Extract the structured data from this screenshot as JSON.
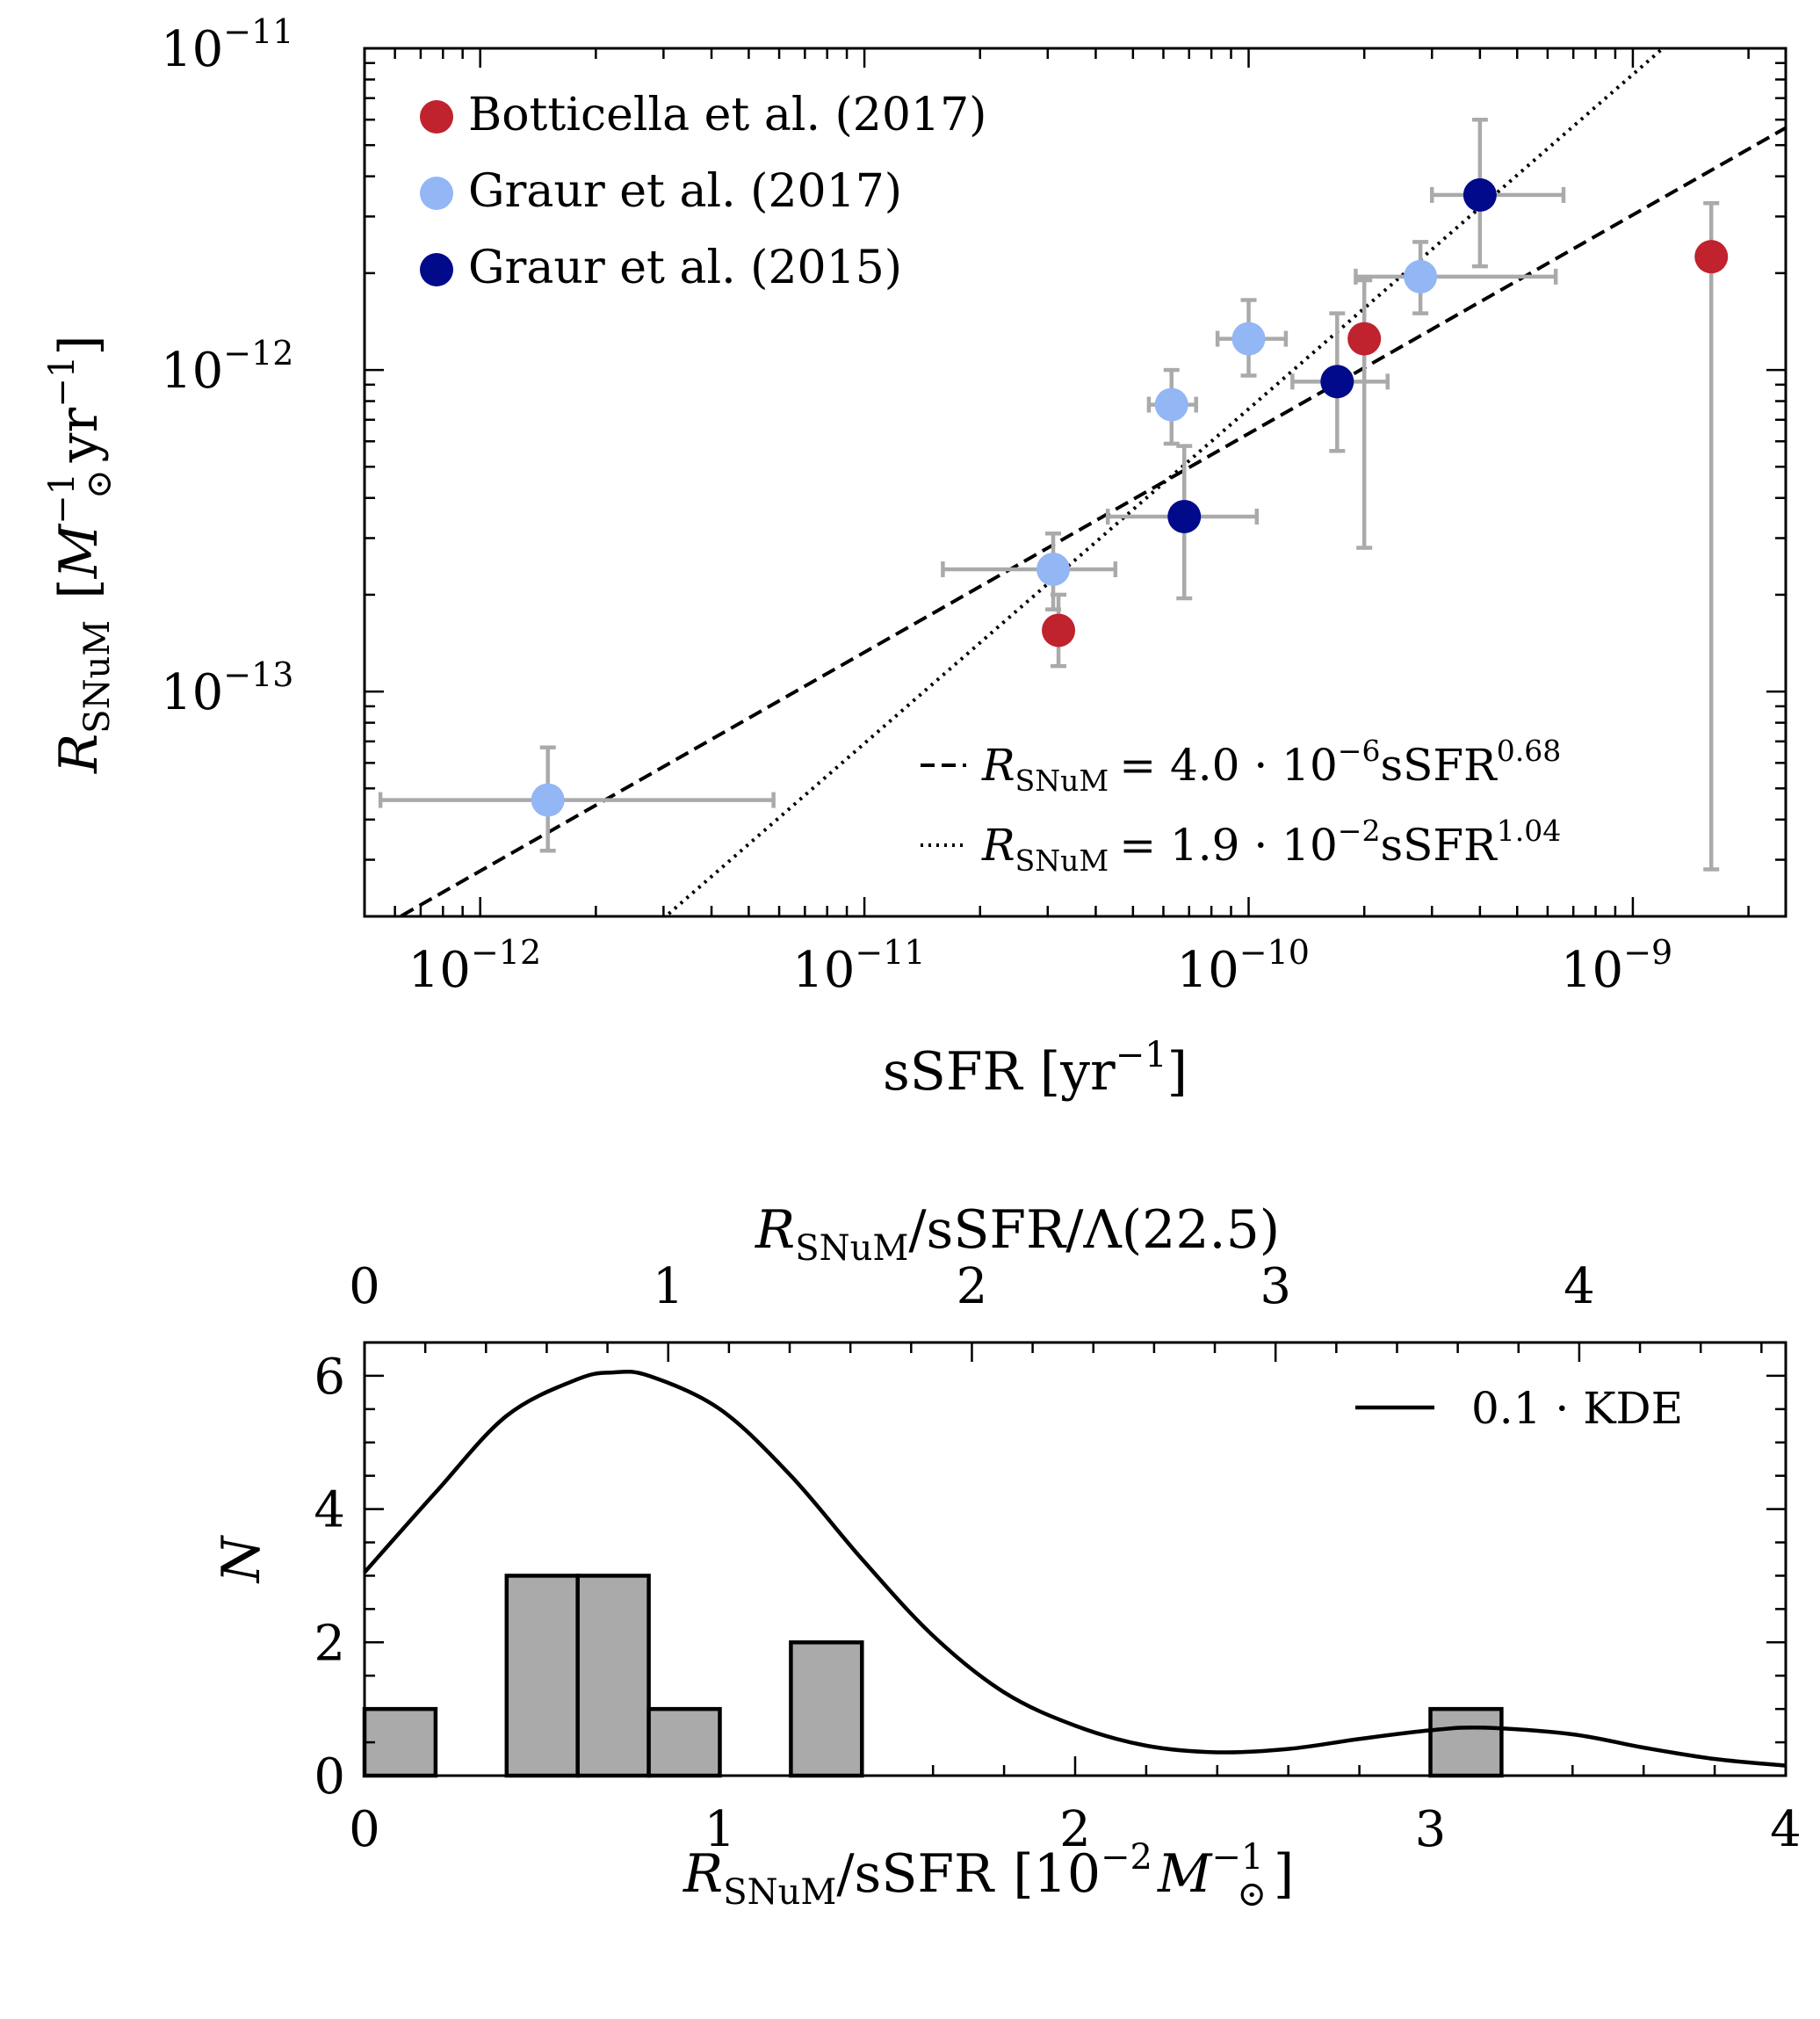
{
  "chart_data": [
    {
      "type": "scatter",
      "xscale": "log",
      "yscale": "log",
      "xlim": [
        5e-13,
        2.5e-09
      ],
      "ylim": [
        2e-14,
        1e-11
      ],
      "xlabel": {
        "main": "sSFR",
        "unit": "yr",
        "unit_exp": "−1"
      },
      "ylabel": {
        "main": "R",
        "sub": "SNuM",
        "unit_pre": "M",
        "unit_pre_exp": "−1",
        "unit_pre_sub": "⊙",
        "unit": "yr",
        "unit_exp": "−1"
      },
      "x_ticks": [
        {
          "value": 1e-12,
          "base": "10",
          "exp": "−12"
        },
        {
          "value": 1e-11,
          "base": "10",
          "exp": "−11"
        },
        {
          "value": 1e-10,
          "base": "10",
          "exp": "−10"
        },
        {
          "value": 1e-09,
          "base": "10",
          "exp": "−9"
        }
      ],
      "y_ticks": [
        {
          "value": 1e-13,
          "base": "10",
          "exp": "−13"
        },
        {
          "value": 1e-12,
          "base": "10",
          "exp": "−12"
        },
        {
          "value": 1e-11,
          "base": "10",
          "exp": "−11"
        }
      ],
      "legend_position": "top-left",
      "series": [
        {
          "name": "Botticella et al. (2017)",
          "color": "#c0222e",
          "points": [
            {
              "x": 3.2e-11,
              "y": 1.55e-13,
              "xerr": null,
              "yerr": [
                1.2e-13,
                2e-13
              ]
            },
            {
              "x": 2e-10,
              "y": 1.25e-12,
              "xerr": null,
              "yerr": [
                2.8e-13,
                1.9e-12
              ]
            },
            {
              "x": 1.6e-09,
              "y": 2.25e-12,
              "xerr": null,
              "yerr": [
                2.8e-14,
                3.3e-12
              ]
            }
          ]
        },
        {
          "name": "Graur et al. (2017)",
          "color": "#93b6f4",
          "points": [
            {
              "x": 1.5e-12,
              "y": 4.6e-14,
              "xerr": [
                5.5e-13,
                5.8e-12
              ],
              "yerr": [
                3.2e-14,
                6.7e-14
              ]
            },
            {
              "x": 3.1e-11,
              "y": 2.4e-13,
              "xerr": [
                1.6e-11,
                4.5e-11
              ],
              "yerr": [
                1.8e-13,
                3.1e-13
              ]
            },
            {
              "x": 6.3e-11,
              "y": 7.8e-13,
              "xerr": [
                5.5e-11,
                7.3e-11
              ],
              "yerr": [
                5.9e-13,
                1e-12
              ]
            },
            {
              "x": 1e-10,
              "y": 1.25e-12,
              "xerr": [
                8.3e-11,
                1.25e-10
              ],
              "yerr": [
                9.6e-13,
                1.65e-12
              ]
            },
            {
              "x": 2.8e-10,
              "y": 1.95e-12,
              "xerr": [
                1.9e-10,
                6.3e-10
              ],
              "yerr": [
                1.5e-12,
                2.5e-12
              ]
            }
          ]
        },
        {
          "name": "Graur et al. (2015)",
          "color": "#000a8a",
          "points": [
            {
              "x": 6.8e-11,
              "y": 3.5e-13,
              "xerr": [
                4.3e-11,
                1.05e-10
              ],
              "yerr": [
                1.95e-13,
                5.8e-13
              ]
            },
            {
              "x": 1.7e-10,
              "y": 9.2e-13,
              "xerr": [
                1.3e-10,
                2.3e-10
              ],
              "yerr": [
                5.6e-13,
                1.5e-12
              ]
            },
            {
              "x": 4e-10,
              "y": 3.5e-12,
              "xerr": [
                3e-10,
                6.6e-10
              ],
              "yerr": [
                2.1e-12,
                6e-12
              ]
            }
          ]
        }
      ],
      "fits": [
        {
          "style": "dashed",
          "coef": 4e-06,
          "exponent": 0.68,
          "label_lhs": "R",
          "label_sub": "SNuM",
          "label_rhs": "= 4.0 · 10",
          "label_exp": "−6",
          "label_var": "sSFR",
          "label_var_exp": "0.68"
        },
        {
          "style": "dotted",
          "coef": 0.019,
          "exponent": 1.04,
          "label_lhs": "R",
          "label_sub": "SNuM",
          "label_rhs": "= 1.9 · 10",
          "label_exp": "−2",
          "label_var": "sSFR",
          "label_var_exp": "1.04"
        }
      ]
    },
    {
      "type": "bar",
      "xlim": [
        0,
        4
      ],
      "ylim": [
        0,
        6.5
      ],
      "xlabel": {
        "main": "R",
        "sub": "SNuM",
        "after": "/sSFR",
        "unit_pre": "10",
        "unit_pre_exp": "−2",
        "unit": "M",
        "unit_exp": "−1",
        "unit_sub": "⊙"
      },
      "ylabel": "N",
      "x_ticks": [
        "0",
        "1",
        "2",
        "3",
        "4"
      ],
      "y_ticks": [
        "0",
        "2",
        "4",
        "6"
      ],
      "top_axis": {
        "label": {
          "main": "R",
          "sub": "SNuM",
          "after": "/sSFR/Λ(22.5)"
        },
        "ticks": [
          "0",
          "1",
          "2",
          "3",
          "4"
        ],
        "scale": 1.17
      },
      "bins": [
        {
          "x0": 0.0,
          "x1": 0.2,
          "count": 1
        },
        {
          "x0": 0.2,
          "x1": 0.4,
          "count": 0
        },
        {
          "x0": 0.4,
          "x1": 0.6,
          "count": 3
        },
        {
          "x0": 0.6,
          "x1": 0.8,
          "count": 3
        },
        {
          "x0": 0.8,
          "x1": 1.0,
          "count": 1
        },
        {
          "x0": 1.0,
          "x1": 1.2,
          "count": 0
        },
        {
          "x0": 1.2,
          "x1": 1.4,
          "count": 2
        },
        {
          "x0": 3.0,
          "x1": 3.2,
          "count": 1
        }
      ],
      "bar_color": "#aaaaaa",
      "kde": {
        "label": "0.1 · KDE",
        "x": [
          0.0,
          0.2,
          0.4,
          0.6,
          0.7,
          0.8,
          1.0,
          1.2,
          1.4,
          1.6,
          1.8,
          2.0,
          2.2,
          2.4,
          2.6,
          2.8,
          3.0,
          3.15,
          3.4,
          3.6,
          3.8,
          4.0
        ],
        "y": [
          3.05,
          4.25,
          5.4,
          5.95,
          6.05,
          6.0,
          5.5,
          4.5,
          3.25,
          2.1,
          1.25,
          0.75,
          0.45,
          0.35,
          0.4,
          0.55,
          0.68,
          0.72,
          0.62,
          0.42,
          0.25,
          0.15
        ]
      },
      "legend_position": "top-right"
    }
  ]
}
